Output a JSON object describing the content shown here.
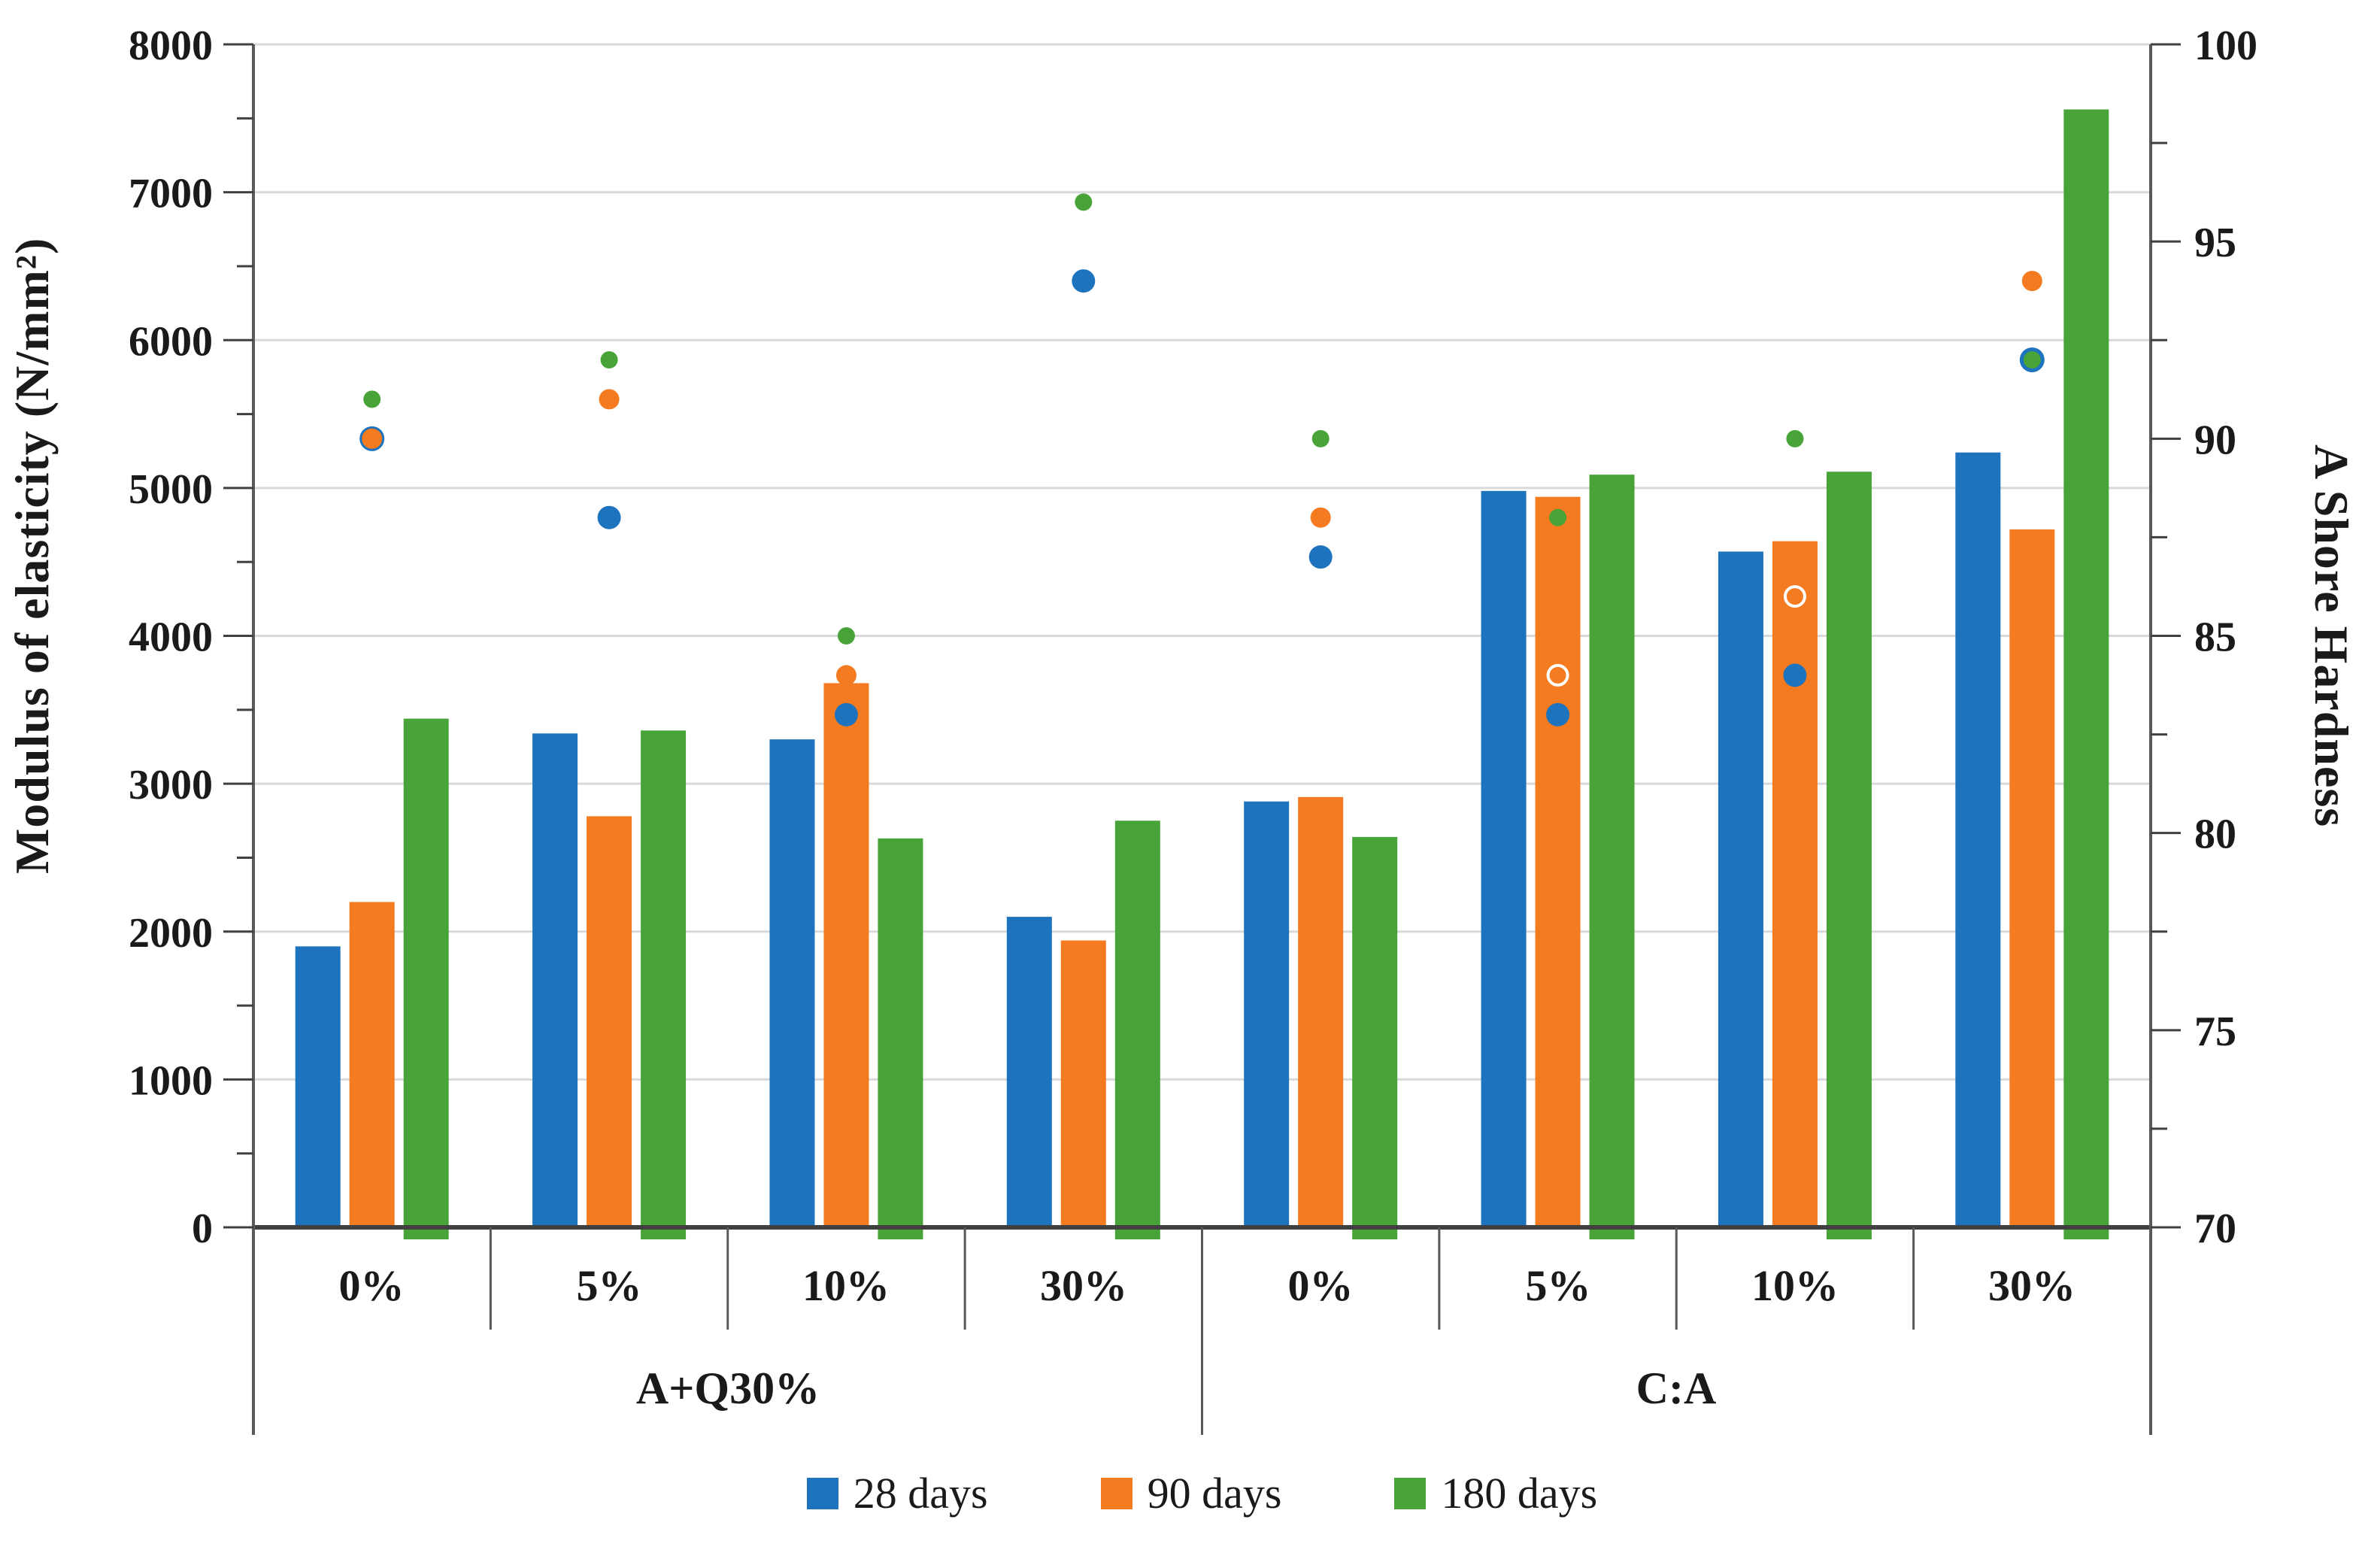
{
  "chart_data": {
    "type": "bar",
    "subtype": "grouped-bar-with-scatter-dual-axis",
    "title": "",
    "left_axis": {
      "label": "Modulus of elasticity (N/mm²)",
      "min": 0,
      "max": 8000,
      "major_step": 1000,
      "minor_step": 500,
      "tick_labels": [
        "0",
        "1000",
        "2000",
        "3000",
        "4000",
        "5000",
        "6000",
        "7000",
        "8000"
      ]
    },
    "right_axis": {
      "label": "A Shore Hardness",
      "min": 70,
      "max": 100,
      "major_step": 5,
      "minor_step": 2.5,
      "tick_labels": [
        "70",
        "75",
        "80",
        "85",
        "90",
        "95",
        "100"
      ]
    },
    "grid": "horizontal-major-only",
    "legend_position": "bottom",
    "series": [
      {
        "name": "28 days",
        "color": "#1E73BE"
      },
      {
        "name": "90 days",
        "color": "#F47B20"
      },
      {
        "name": "180 days",
        "color": "#48A438"
      }
    ],
    "sections": [
      {
        "label": "A+Q30%",
        "groups": [
          0,
          1,
          2,
          3
        ]
      },
      {
        "label": "C:A",
        "groups": [
          4,
          5,
          6,
          7
        ]
      }
    ],
    "groups": [
      {
        "section": "A+Q30%",
        "dosage": "0%",
        "modulus": [
          1900,
          2200,
          3440
        ],
        "hardness": [
          {
            "value": 90,
            "marker": "behind"
          },
          {
            "value": 90,
            "marker": "dot"
          },
          {
            "value": 91,
            "marker": "dot"
          }
        ]
      },
      {
        "section": "A+Q30%",
        "dosage": "5%",
        "modulus": [
          3340,
          2780,
          3360
        ],
        "hardness": [
          {
            "value": 88,
            "marker": "dot"
          },
          {
            "value": 91,
            "marker": "dot"
          },
          {
            "value": 92,
            "marker": "dot"
          }
        ]
      },
      {
        "section": "A+Q30%",
        "dosage": "10%",
        "modulus": [
          3300,
          3680,
          2630
        ],
        "hardness": [
          {
            "value": 83,
            "marker": "dot"
          },
          {
            "value": 84,
            "marker": "dot"
          },
          {
            "value": 85,
            "marker": "dot"
          }
        ]
      },
      {
        "section": "A+Q30%",
        "dosage": "30%",
        "modulus": [
          2100,
          1940,
          2750
        ],
        "hardness": [
          {
            "value": 94,
            "marker": "dot"
          },
          {
            "value": null,
            "marker": "none"
          },
          {
            "value": 96,
            "marker": "dot"
          }
        ]
      },
      {
        "section": "C:A",
        "dosage": "0%",
        "modulus": [
          2880,
          2910,
          2640
        ],
        "hardness": [
          {
            "value": 87,
            "marker": "dot"
          },
          {
            "value": 88,
            "marker": "dot"
          },
          {
            "value": 90,
            "marker": "dot"
          }
        ]
      },
      {
        "section": "C:A",
        "dosage": "5%",
        "modulus": [
          4980,
          4940,
          5090
        ],
        "hardness": [
          {
            "value": 83,
            "marker": "dot"
          },
          {
            "value": 84,
            "marker": "ring"
          },
          {
            "value": 88,
            "marker": "dot"
          }
        ]
      },
      {
        "section": "C:A",
        "dosage": "10%",
        "modulus": [
          4570,
          4640,
          5110
        ],
        "hardness": [
          {
            "value": 84,
            "marker": "dot"
          },
          {
            "value": 86,
            "marker": "ring"
          },
          {
            "value": 90,
            "marker": "dot"
          }
        ]
      },
      {
        "section": "C:A",
        "dosage": "30%",
        "modulus": [
          5240,
          4720,
          7560
        ],
        "hardness": [
          {
            "value": 92,
            "marker": "behind"
          },
          {
            "value": 94,
            "marker": "dot"
          },
          {
            "value": 92,
            "marker": "dot"
          }
        ]
      }
    ],
    "colors": {
      "gridline": "#D9D9D9",
      "axis_line": "#404040",
      "spine": "#595959",
      "ring_marker_stroke": "#FFFFFF",
      "background": "#FFFFFF"
    }
  }
}
